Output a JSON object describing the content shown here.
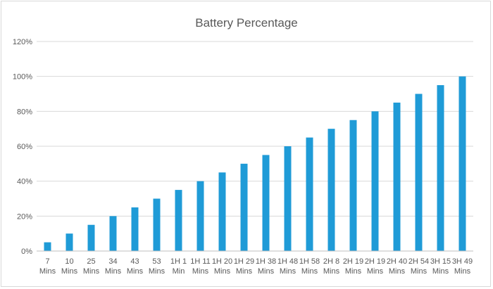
{
  "chart_data": {
    "type": "bar",
    "title": "Battery Percentage",
    "xlabel": "",
    "ylabel": "",
    "ylim": [
      0,
      120
    ],
    "y_tick_step": 20,
    "y_tick_format": "percent",
    "grid": true,
    "legend": "none",
    "bar_color": "#1f9bd7",
    "categories": [
      "7 Mins",
      "10 Mins",
      "25 Mins",
      "34 Mins",
      "43 Mins",
      "53 Mins",
      "1H 1 Min",
      "1H 11 Mins",
      "1H 20 Mins",
      "1H 29 Mins",
      "1H 38 Mins",
      "1H 48 Mins",
      "1H 58 Mins",
      "2H 8 Mins",
      "2H 19 Mins",
      "2H 19 Mins",
      "2H 40 Mins",
      "2H 54 Mins",
      "3H 15 Mins",
      "3H 49 Mins"
    ],
    "category_lines": [
      [
        "7",
        "Mins"
      ],
      [
        "10",
        "Mins"
      ],
      [
        "25",
        "Mins"
      ],
      [
        "34",
        "Mins"
      ],
      [
        "43",
        "Mins"
      ],
      [
        "53",
        "Mins"
      ],
      [
        "1H 1",
        "Min"
      ],
      [
        "1H 11",
        "Mins"
      ],
      [
        "1H 20",
        "Mins"
      ],
      [
        "1H 29",
        "Mins"
      ],
      [
        "1H 38",
        "Mins"
      ],
      [
        "1H 48",
        "Mins"
      ],
      [
        "1H 58",
        "Mins"
      ],
      [
        "2H 8",
        "Mins"
      ],
      [
        "2H 19",
        "Mins"
      ],
      [
        "2H 19",
        "Mins"
      ],
      [
        "2H 40",
        "Mins"
      ],
      [
        "2H 54",
        "Mins"
      ],
      [
        "3H 15",
        "Mins"
      ],
      [
        "3H 49",
        "Mins"
      ]
    ],
    "values": [
      5,
      10,
      15,
      20,
      25,
      30,
      35,
      40,
      45,
      50,
      55,
      60,
      65,
      70,
      75,
      80,
      85,
      90,
      95,
      100
    ]
  }
}
